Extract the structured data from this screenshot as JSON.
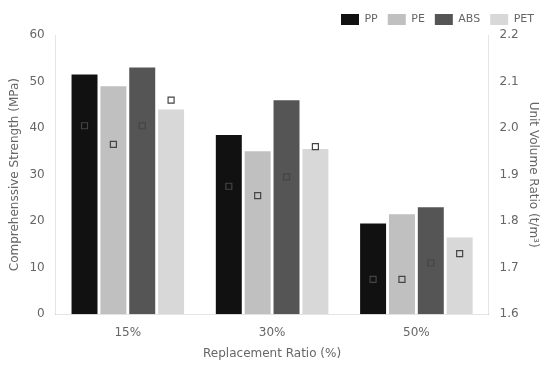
{
  "chart_data": {
    "type": "bar",
    "categories": [
      "15%",
      "30%",
      "50%"
    ],
    "xlabel": "Replacement Ratio (%)",
    "ylabel": "Comprehenssive Strength (MPa)",
    "y2label": "Unit Volume Ratio (t/m³)",
    "series": [
      {
        "name": "PP",
        "color": "#111111",
        "values": [
          51.5,
          38.5,
          19.5
        ]
      },
      {
        "name": "PE",
        "color": "#c0c0c0",
        "values": [
          49.0,
          35.0,
          21.5
        ]
      },
      {
        "name": "ABS",
        "color": "#555555",
        "values": [
          53.0,
          46.0,
          23.0
        ]
      },
      {
        "name": "PET",
        "color": "#d8d8d8",
        "values": [
          44.0,
          35.5,
          16.5
        ]
      },
      {
        "type": "scatter",
        "marker": "square",
        "axis": "y2",
        "color": "#444444",
        "values": [
          2.005,
          1.875,
          1.675
        ]
      },
      {
        "type": "scatter",
        "marker": "square",
        "axis": "y2",
        "color": "#444444",
        "values": [
          1.965,
          1.855,
          1.675
        ]
      },
      {
        "type": "scatter",
        "marker": "square",
        "axis": "y2",
        "color": "#444444",
        "values": [
          2.005,
          1.895,
          1.71
        ]
      },
      {
        "type": "scatter",
        "marker": "square",
        "axis": "y2",
        "color": "#444444",
        "values": [
          2.06,
          1.96,
          1.73
        ]
      }
    ],
    "ylim": [
      0,
      60
    ],
    "yticks": [
      0,
      10,
      20,
      30,
      40,
      50,
      60
    ],
    "y2lim": [
      1.6,
      2.2
    ],
    "y2ticks": [
      1.6,
      1.7,
      1.8,
      1.9,
      {
        "value": 2.0,
        "label": "2.0"
      },
      2.1,
      2.2
    ],
    "grid": false,
    "legend": "upper right"
  }
}
